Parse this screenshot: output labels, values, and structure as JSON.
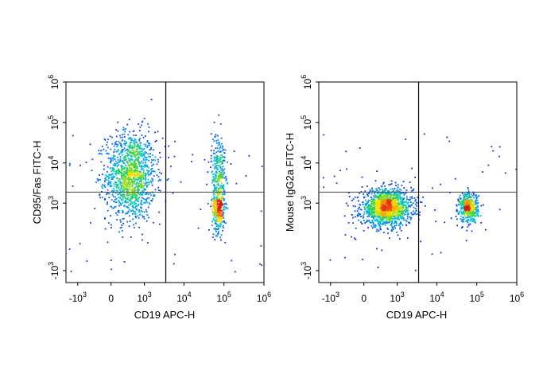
{
  "chart_data": [
    {
      "type": "scatter",
      "subtype": "flow-cytometry-density-plot",
      "xlabel": "CD19 APC-H",
      "ylabel": "CD95/Fas FITC-H",
      "x_scale": "biexponential",
      "y_scale": "biexponential",
      "xlim": [
        -2000,
        1000000
      ],
      "ylim": [
        -2000,
        1000000
      ],
      "x_ticks": [
        {
          "base": "-10",
          "exp": "3",
          "value": -1000
        },
        {
          "base": "0",
          "exp": "",
          "value": 0
        },
        {
          "base": "10",
          "exp": "3",
          "value": 1000
        },
        {
          "base": "10",
          "exp": "4",
          "value": 10000
        },
        {
          "base": "10",
          "exp": "5",
          "value": 100000
        },
        {
          "base": "10",
          "exp": "6",
          "value": 1000000
        }
      ],
      "y_ticks": [
        {
          "base": "-10",
          "exp": "3",
          "value": -1000
        },
        {
          "base": "10",
          "exp": "3",
          "value": 1000
        },
        {
          "base": "10",
          "exp": "4",
          "value": 10000
        },
        {
          "base": "10",
          "exp": "5",
          "value": 100000
        },
        {
          "base": "10",
          "exp": "6",
          "value": 1000000
        }
      ],
      "gate": {
        "x": 3500,
        "y": 1900
      },
      "populations": [
        {
          "x": 400,
          "y": 5000,
          "spread_x": 500,
          "spread_y": 0.55,
          "weight": 0.68
        },
        {
          "x": 70000,
          "y": 800,
          "spread_x": 0.08,
          "spread_y": 0.3,
          "weight": 0.2
        },
        {
          "x": 70000,
          "y": 8000,
          "spread_x": 0.09,
          "spread_y": 0.45,
          "weight": 0.12
        }
      ]
    },
    {
      "type": "scatter",
      "subtype": "flow-cytometry-density-plot",
      "xlabel": "CD19 APC-H",
      "ylabel": "Mouse IgG2a FITC-H",
      "x_scale": "biexponential",
      "y_scale": "biexponential",
      "xlim": [
        -2000,
        1000000
      ],
      "ylim": [
        -2000,
        1000000
      ],
      "x_ticks": [
        {
          "base": "-10",
          "exp": "3",
          "value": -1000
        },
        {
          "base": "0",
          "exp": "",
          "value": 0
        },
        {
          "base": "10",
          "exp": "3",
          "value": 1000
        },
        {
          "base": "10",
          "exp": "4",
          "value": 10000
        },
        {
          "base": "10",
          "exp": "5",
          "value": 100000
        },
        {
          "base": "10",
          "exp": "6",
          "value": 1000000
        }
      ],
      "y_ticks": [
        {
          "base": "-10",
          "exp": "3",
          "value": -1000
        },
        {
          "base": "10",
          "exp": "3",
          "value": 1000
        },
        {
          "base": "10",
          "exp": "4",
          "value": 10000
        },
        {
          "base": "10",
          "exp": "5",
          "value": 100000
        },
        {
          "base": "10",
          "exp": "6",
          "value": 1000000
        }
      ],
      "gate": {
        "x": 3500,
        "y": 1900
      },
      "populations": [
        {
          "x": 500,
          "y": 800,
          "spread_x": 600,
          "spread_y": 0.22,
          "weight": 0.75
        },
        {
          "x": 60000,
          "y": 800,
          "spread_x": 0.12,
          "spread_y": 0.18,
          "weight": 0.25
        }
      ]
    }
  ]
}
